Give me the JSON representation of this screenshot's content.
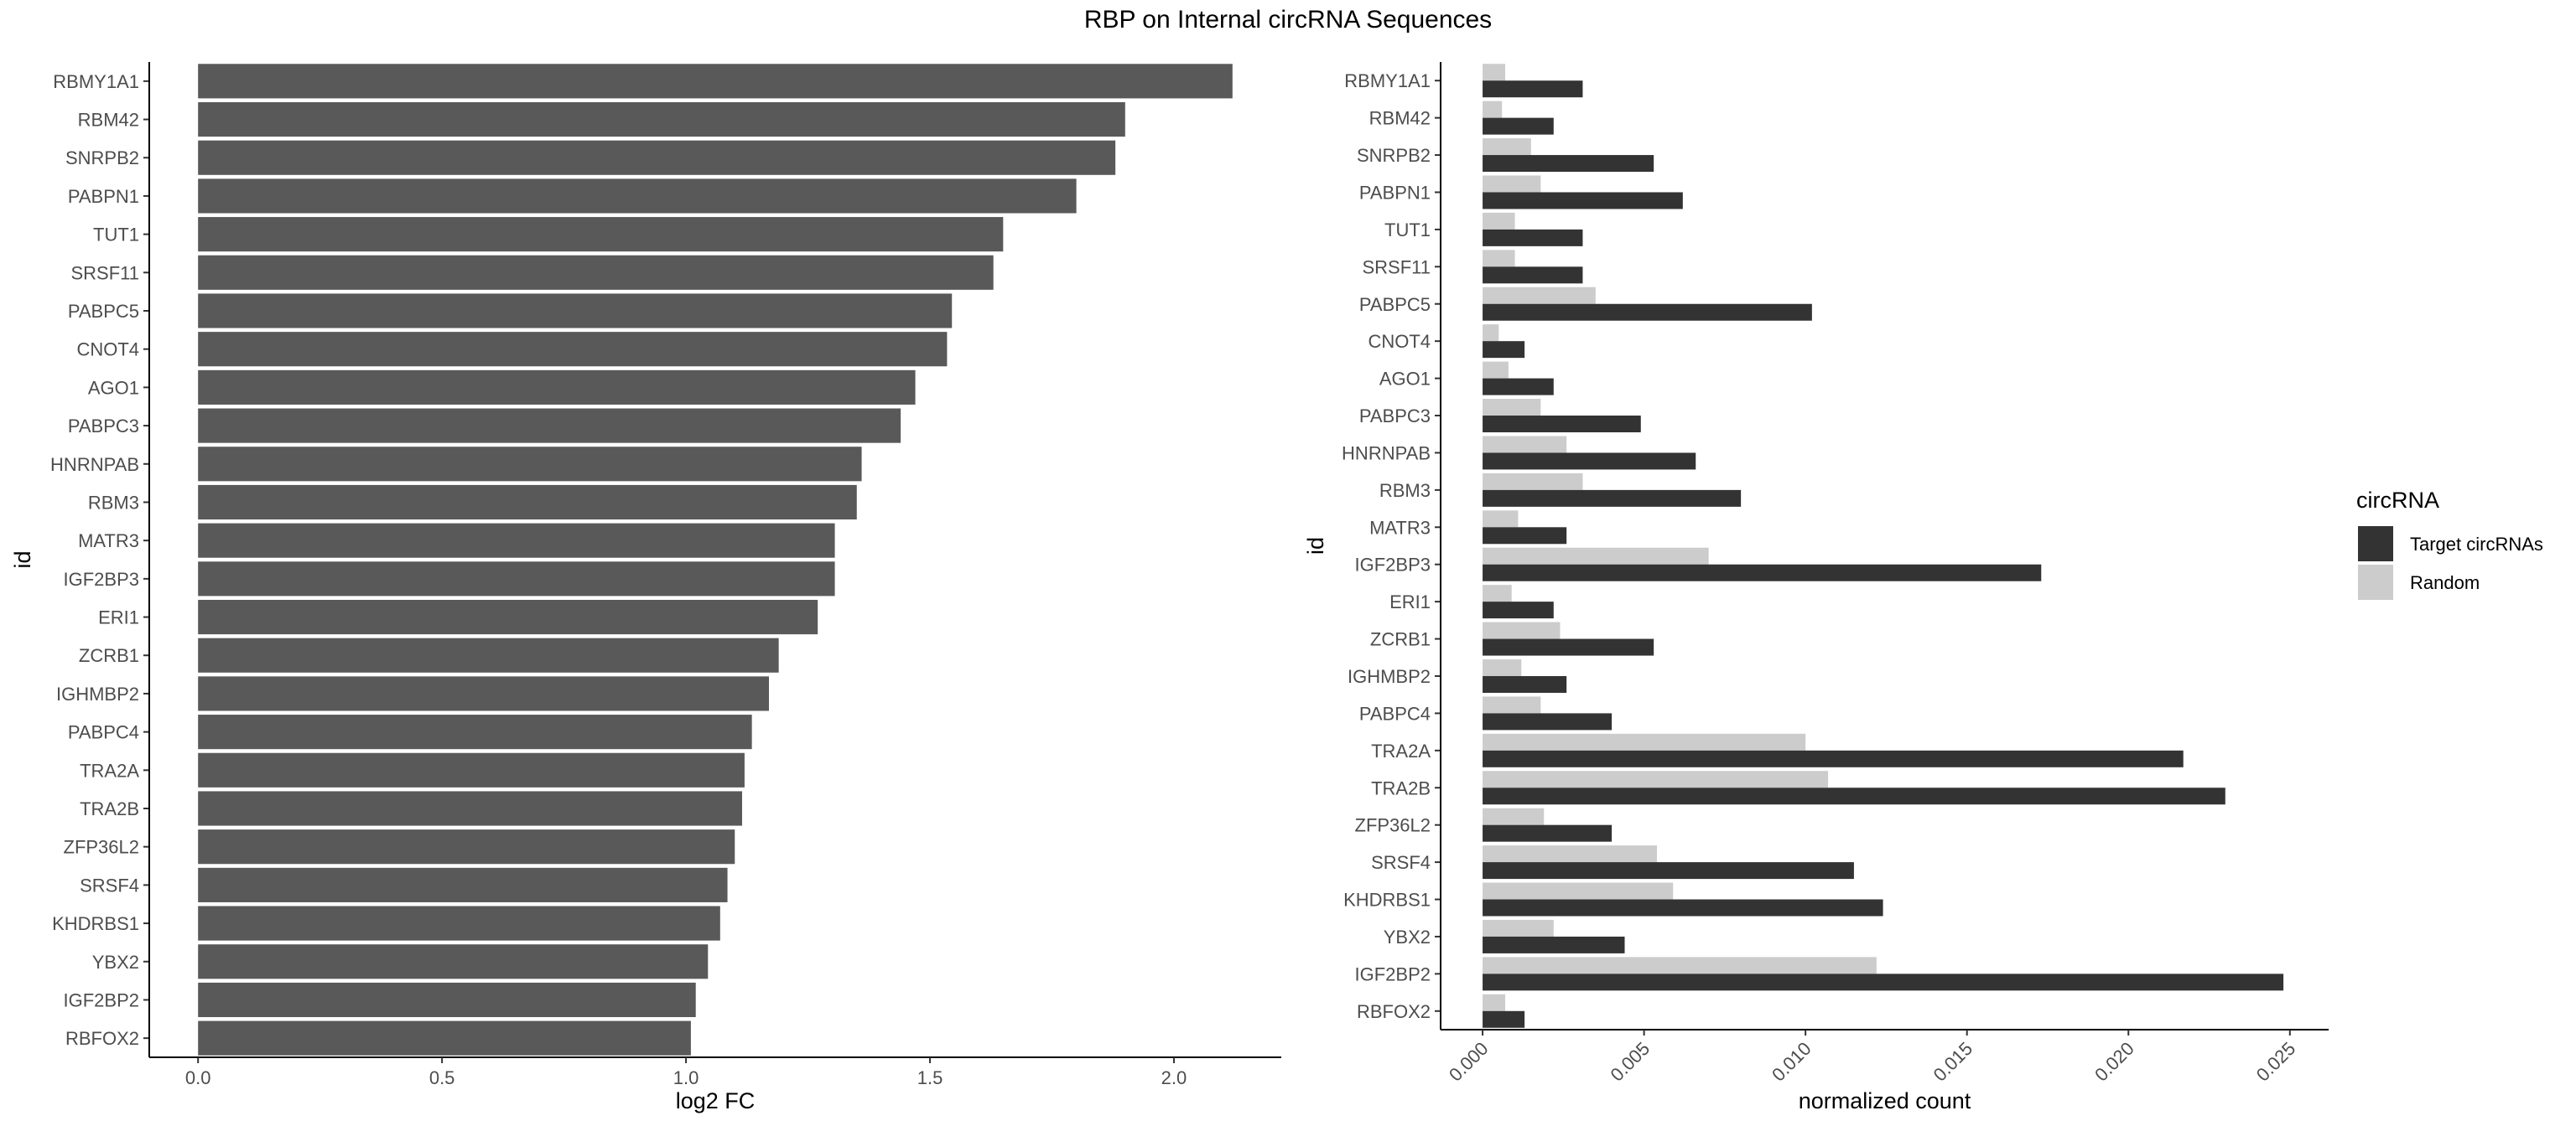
{
  "figure_title": "RBP on Internal circRNA Sequences",
  "chart_data": [
    {
      "type": "bar",
      "orientation": "horizontal",
      "xlabel": "log2 FC",
      "ylabel": "id",
      "xlim": [
        -0.1,
        2.22
      ],
      "xticks": [
        0.0,
        0.5,
        1.0,
        1.5,
        2.0
      ],
      "xtick_labels": [
        "0.0",
        "0.5",
        "1.0",
        "1.5",
        "2.0"
      ],
      "grid": false,
      "color": "#595959",
      "categories": [
        "RBMY1A1",
        "RBM42",
        "SNRPB2",
        "PABPN1",
        "TUT1",
        "SRSF11",
        "PABPC5",
        "CNOT4",
        "AGO1",
        "PABPC3",
        "HNRNPAB",
        "RBM3",
        "MATR3",
        "IGF2BP3",
        "ERI1",
        "ZCRB1",
        "IGHMBP2",
        "PABPC4",
        "TRA2A",
        "TRA2B",
        "ZFP36L2",
        "SRSF4",
        "KHDRBS1",
        "YBX2",
        "IGF2BP2",
        "RBFOX2"
      ],
      "values": [
        2.12,
        1.9,
        1.88,
        1.8,
        1.65,
        1.63,
        1.545,
        1.535,
        1.47,
        1.44,
        1.36,
        1.35,
        1.305,
        1.305,
        1.27,
        1.19,
        1.17,
        1.135,
        1.12,
        1.115,
        1.1,
        1.085,
        1.07,
        1.045,
        1.02,
        1.01
      ]
    },
    {
      "type": "bar",
      "orientation": "horizontal",
      "grouped": true,
      "xlabel": "normalized count",
      "ylabel": "id",
      "xlim": [
        -0.0013,
        0.0262
      ],
      "xticks": [
        0.0,
        0.005,
        0.01,
        0.015,
        0.02,
        0.025
      ],
      "xtick_labels": [
        "0.000",
        "0.005",
        "0.010",
        "0.015",
        "0.020",
        "0.025"
      ],
      "grid": false,
      "legend": {
        "title": "circRNA",
        "position": "right"
      },
      "categories": [
        "RBMY1A1",
        "RBM42",
        "SNRPB2",
        "PABPN1",
        "TUT1",
        "SRSF11",
        "PABPC5",
        "CNOT4",
        "AGO1",
        "PABPC3",
        "HNRNPAB",
        "RBM3",
        "MATR3",
        "IGF2BP3",
        "ERI1",
        "ZCRB1",
        "IGHMBP2",
        "PABPC4",
        "TRA2A",
        "TRA2B",
        "ZFP36L2",
        "SRSF4",
        "KHDRBS1",
        "YBX2",
        "IGF2BP2",
        "RBFOX2"
      ],
      "series": [
        {
          "name": "Target circRNAs",
          "color": "#333333",
          "values": [
            0.0031,
            0.0022,
            0.0053,
            0.0062,
            0.0031,
            0.0031,
            0.0102,
            0.0013,
            0.0022,
            0.0049,
            0.0066,
            0.008,
            0.0026,
            0.0173,
            0.0022,
            0.0053,
            0.0026,
            0.004,
            0.0217,
            0.023,
            0.004,
            0.0115,
            0.0124,
            0.0044,
            0.0248,
            0.0013
          ]
        },
        {
          "name": "Random",
          "color": "#cccccc",
          "values": [
            0.0007,
            0.0006,
            0.0015,
            0.0018,
            0.001,
            0.001,
            0.0035,
            0.0005,
            0.0008,
            0.0018,
            0.0026,
            0.0031,
            0.0011,
            0.007,
            0.0009,
            0.0024,
            0.0012,
            0.0018,
            0.01,
            0.0107,
            0.0019,
            0.0054,
            0.0059,
            0.0022,
            0.0122,
            0.0007
          ]
        }
      ]
    }
  ]
}
